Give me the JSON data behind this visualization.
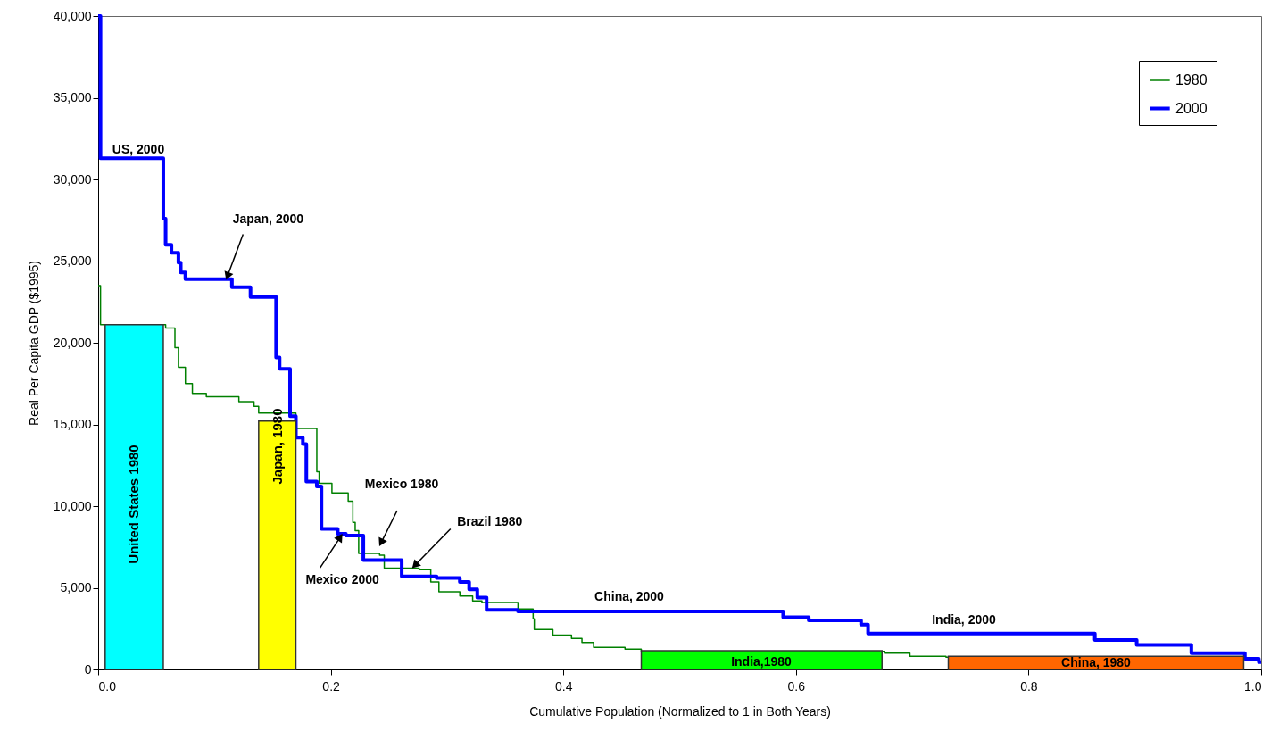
{
  "chart_data": {
    "type": "step",
    "xlabel": "Cumulative Population (Normalized to 1 in Both Years)",
    "ylabel": "Real Per Capita GDP ($1995)",
    "xlim": [
      0,
      1
    ],
    "xticks": [
      {
        "value": 0,
        "label": "0.0"
      },
      0.2,
      0.4,
      0.6,
      0.8,
      {
        "value": 1,
        "label": "1.0"
      }
    ],
    "ylim": [
      0,
      40000
    ],
    "yticks": [
      {
        "value": 0,
        "label": "0"
      },
      {
        "value": 5000,
        "label": "5,000"
      },
      {
        "value": 10000,
        "label": "10,000"
      },
      {
        "value": 15000,
        "label": "15,000"
      },
      {
        "value": 20000,
        "label": "20,000"
      },
      {
        "value": 25000,
        "label": "25,000"
      },
      {
        "value": 30000,
        "label": "30,000"
      },
      {
        "value": 35000,
        "label": "35,000"
      },
      {
        "value": 40000,
        "label": "40,000"
      }
    ],
    "grid": false,
    "legend": "top right",
    "marker": "none",
    "line_style": "solid",
    "series": [
      {
        "name": "1980",
        "color": "#008000",
        "x": [
          0,
          0.002,
          0.058,
          0.066,
          0.069,
          0.075,
          0.081,
          0.093,
          0.121,
          0.134,
          0.138,
          0.17,
          0.188,
          0.19,
          0.201,
          0.215,
          0.219,
          0.221,
          0.224,
          0.242,
          0.246,
          0.276,
          0.286,
          0.293,
          0.311,
          0.322,
          0.33,
          0.361,
          0.374,
          0.375,
          0.391,
          0.407,
          0.416,
          0.426,
          0.453,
          0.467,
          0.676,
          0.698,
          0.729,
          0.731
        ],
        "values": [
          23500,
          21100,
          20900,
          19700,
          18500,
          17500,
          16900,
          16700,
          16400,
          16100,
          15700,
          14750,
          12100,
          11400,
          10800,
          10300,
          9000,
          8500,
          7100,
          7000,
          6200,
          6100,
          5350,
          4750,
          4500,
          4200,
          4100,
          3700,
          3100,
          2450,
          2100,
          1900,
          1650,
          1350,
          1250,
          1100,
          1000,
          800,
          750,
          750
        ]
      },
      {
        "name": "2000",
        "color": "#0000ff",
        "x": [
          0,
          0.002,
          0.056,
          0.058,
          0.063,
          0.069,
          0.071,
          0.075,
          0.115,
          0.131,
          0.153,
          0.156,
          0.165,
          0.17,
          0.176,
          0.179,
          0.188,
          0.192,
          0.206,
          0.213,
          0.228,
          0.261,
          0.291,
          0.311,
          0.319,
          0.326,
          0.334,
          0.361,
          0.589,
          0.611,
          0.656,
          0.662,
          0.857,
          0.893,
          0.94,
          0.986,
          0.998,
          1.0
        ],
        "values": [
          40000,
          31300,
          27600,
          26000,
          25500,
          24900,
          24300,
          23900,
          23400,
          22800,
          19100,
          18400,
          15500,
          14200,
          13800,
          11500,
          11200,
          8600,
          8300,
          8200,
          6700,
          5700,
          5600,
          5350,
          4900,
          4400,
          3650,
          3550,
          3200,
          3000,
          2750,
          2200,
          1800,
          1500,
          1000,
          650,
          450,
          450
        ]
      },
      {
        "type": "area",
        "color": "#00ffff",
        "x": [
          0.006,
          0.056
        ],
        "values": [
          21100,
          21100
        ]
      },
      {
        "type": "area",
        "color": "#ffff00",
        "x": [
          0.138,
          0.17
        ],
        "values": [
          15200,
          15200
        ]
      },
      {
        "type": "area",
        "color": "#00ff00",
        "x": [
          0.467,
          0.674
        ],
        "values": [
          1150,
          1150
        ]
      },
      {
        "type": "area",
        "color": "#ff6600",
        "x": [
          0.731,
          0.985
        ],
        "values": [
          800,
          800
        ]
      }
    ],
    "annotations": [
      "US, 2000",
      {
        "text": "Japan, 2000",
        "x": 0.11,
        "y": 23850
      },
      "Mexico 1980",
      {
        "text": "Brazil 1980",
        "x": 0.27,
        "y": 6200
      },
      {
        "text": "Mexico 2000",
        "x": 0.21,
        "y": 8300
      },
      "China, 2000",
      "India, 2000",
      "United States 1980",
      "Japan, 1980",
      "India,1980",
      "China, 1980"
    ]
  }
}
